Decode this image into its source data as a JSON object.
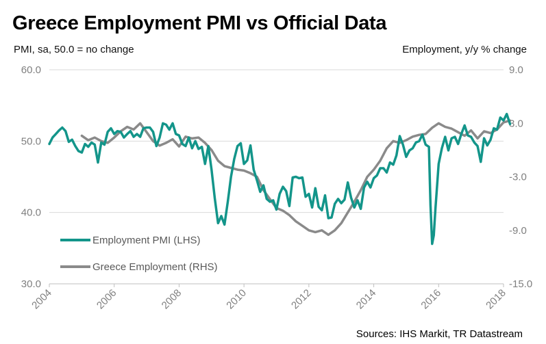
{
  "title": "Greece Employment PMI vs Official Data",
  "subtitle_left": "PMI, sa, 50.0 = no change",
  "subtitle_right": "Employment, y/y % change",
  "source": "Sources: IHS Markit, TR Datastream",
  "colors": {
    "pmi": "#13958a",
    "employment": "#8a8a8a",
    "grid": "#d9d9d9",
    "axis": "#7f7f7f"
  },
  "chart_data": {
    "type": "line",
    "title": "Greece Employment PMI vs Official Data",
    "grid": true,
    "legend_position": "bottom-left",
    "x_ticks": [
      "2004",
      "2006",
      "2008",
      "2010",
      "2012",
      "2014",
      "2016",
      "2018"
    ],
    "x_range": [
      2004.0,
      2018.0
    ],
    "y_left": {
      "label": "PMI, sa, 50.0 = no change",
      "range": [
        30,
        60
      ],
      "ticks": [
        "30.0",
        "40.0",
        "50.0",
        "60.0"
      ]
    },
    "y_right": {
      "label": "Employment, y/y % change",
      "range": [
        -15,
        9
      ],
      "ticks": [
        "-15.0",
        "-9.0",
        "-3.0",
        "3.0",
        "9.0"
      ]
    },
    "series": [
      {
        "name": "Employment PMI (LHS)",
        "axis": "left",
        "points": [
          [
            2004.0,
            49.6
          ],
          [
            2004.1,
            50.5
          ],
          [
            2004.2,
            51.0
          ],
          [
            2004.3,
            51.5
          ],
          [
            2004.4,
            51.9
          ],
          [
            2004.5,
            51.4
          ],
          [
            2004.6,
            49.9
          ],
          [
            2004.7,
            50.2
          ],
          [
            2004.8,
            49.3
          ],
          [
            2004.9,
            48.6
          ],
          [
            2005.0,
            48.4
          ],
          [
            2005.1,
            49.6
          ],
          [
            2005.2,
            49.2
          ],
          [
            2005.3,
            49.8
          ],
          [
            2005.4,
            49.5
          ],
          [
            2005.5,
            47.0
          ],
          [
            2005.6,
            49.8
          ],
          [
            2005.7,
            49.5
          ],
          [
            2005.8,
            51.3
          ],
          [
            2005.9,
            51.8
          ],
          [
            2006.0,
            51.0
          ],
          [
            2006.1,
            51.4
          ],
          [
            2006.2,
            51.3
          ],
          [
            2006.3,
            50.5
          ],
          [
            2006.4,
            51.0
          ],
          [
            2006.5,
            51.4
          ],
          [
            2006.6,
            50.6
          ],
          [
            2006.7,
            51.0
          ],
          [
            2006.8,
            50.6
          ],
          [
            2006.9,
            51.8
          ],
          [
            2007.0,
            51.9
          ],
          [
            2007.1,
            51.9
          ],
          [
            2007.2,
            51.3
          ],
          [
            2007.3,
            49.3
          ],
          [
            2007.4,
            50.5
          ],
          [
            2007.5,
            52.5
          ],
          [
            2007.6,
            52.3
          ],
          [
            2007.7,
            51.6
          ],
          [
            2007.8,
            52.5
          ],
          [
            2007.9,
            51.0
          ],
          [
            2008.0,
            50.8
          ],
          [
            2008.1,
            49.6
          ],
          [
            2008.2,
            49.3
          ],
          [
            2008.3,
            50.5
          ],
          [
            2008.4,
            49.0
          ],
          [
            2008.5,
            50.0
          ],
          [
            2008.6,
            48.9
          ],
          [
            2008.7,
            49.2
          ],
          [
            2008.8,
            46.8
          ],
          [
            2008.9,
            49.3
          ],
          [
            2009.0,
            46.0
          ],
          [
            2009.1,
            42.0
          ],
          [
            2009.2,
            38.5
          ],
          [
            2009.3,
            39.5
          ],
          [
            2009.4,
            38.3
          ],
          [
            2009.5,
            41.5
          ],
          [
            2009.6,
            45.0
          ],
          [
            2009.7,
            47.5
          ],
          [
            2009.8,
            49.3
          ],
          [
            2009.9,
            49.7
          ],
          [
            2010.0,
            46.8
          ],
          [
            2010.1,
            47.3
          ],
          [
            2010.2,
            49.4
          ],
          [
            2010.3,
            46.0
          ],
          [
            2010.4,
            44.5
          ],
          [
            2010.5,
            42.9
          ],
          [
            2010.6,
            43.8
          ],
          [
            2010.7,
            41.9
          ],
          [
            2010.8,
            41.5
          ],
          [
            2010.9,
            41.7
          ],
          [
            2011.0,
            40.4
          ],
          [
            2011.1,
            42.6
          ],
          [
            2011.2,
            43.6
          ],
          [
            2011.3,
            43.0
          ],
          [
            2011.4,
            40.9
          ],
          [
            2011.5,
            44.9
          ],
          [
            2011.6,
            45.0
          ],
          [
            2011.7,
            44.8
          ],
          [
            2011.8,
            44.9
          ],
          [
            2011.9,
            42.2
          ],
          [
            2012.0,
            42.6
          ],
          [
            2012.1,
            40.7
          ],
          [
            2012.2,
            43.4
          ],
          [
            2012.3,
            40.8
          ],
          [
            2012.4,
            40.3
          ],
          [
            2012.5,
            42.4
          ],
          [
            2012.6,
            39.2
          ],
          [
            2012.7,
            39.3
          ],
          [
            2012.8,
            41.2
          ],
          [
            2012.9,
            41.9
          ],
          [
            2013.0,
            41.3
          ],
          [
            2013.1,
            41.8
          ],
          [
            2013.2,
            44.2
          ],
          [
            2013.3,
            42.1
          ],
          [
            2013.4,
            40.7
          ],
          [
            2013.5,
            41.7
          ],
          [
            2013.6,
            40.5
          ],
          [
            2013.7,
            43.5
          ],
          [
            2013.8,
            44.3
          ],
          [
            2013.9,
            43.5
          ],
          [
            2014.0,
            44.8
          ],
          [
            2014.1,
            45.2
          ],
          [
            2014.2,
            46.2
          ],
          [
            2014.3,
            46.2
          ],
          [
            2014.4,
            45.6
          ],
          [
            2014.5,
            47.0
          ],
          [
            2014.6,
            46.7
          ],
          [
            2014.7,
            48.0
          ],
          [
            2014.8,
            50.7
          ],
          [
            2014.9,
            49.5
          ],
          [
            2015.0,
            47.8
          ],
          [
            2015.1,
            48.7
          ],
          [
            2015.2,
            49.0
          ],
          [
            2015.3,
            49.8
          ],
          [
            2015.4,
            50.0
          ],
          [
            2015.5,
            50.9
          ],
          [
            2015.6,
            49.5
          ],
          [
            2015.7,
            49.2
          ],
          [
            2015.75,
            41.0
          ],
          [
            2015.8,
            35.6
          ],
          [
            2015.85,
            36.8
          ],
          [
            2015.9,
            40.5
          ],
          [
            2016.0,
            46.8
          ],
          [
            2016.1,
            49.0
          ],
          [
            2016.2,
            50.6
          ],
          [
            2016.3,
            48.7
          ],
          [
            2016.4,
            50.4
          ],
          [
            2016.5,
            50.6
          ],
          [
            2016.6,
            49.6
          ],
          [
            2016.7,
            51.0
          ],
          [
            2016.8,
            52.2
          ],
          [
            2016.9,
            50.8
          ],
          [
            2017.0,
            50.6
          ],
          [
            2017.1,
            49.8
          ],
          [
            2017.2,
            49.3
          ],
          [
            2017.3,
            47.1
          ],
          [
            2017.4,
            50.4
          ],
          [
            2017.5,
            49.4
          ],
          [
            2017.6,
            50.2
          ],
          [
            2017.7,
            51.8
          ],
          [
            2017.8,
            51.6
          ],
          [
            2017.9,
            53.3
          ],
          [
            2018.0,
            52.9
          ],
          [
            2018.1,
            53.8
          ],
          [
            2018.2,
            52.4
          ]
        ]
      },
      {
        "name": "Greece Employment (RHS)",
        "axis": "right",
        "points": [
          [
            2005.0,
            1.6
          ],
          [
            2005.2,
            1.1
          ],
          [
            2005.4,
            1.4
          ],
          [
            2005.6,
            1.0
          ],
          [
            2005.8,
            0.8
          ],
          [
            2006.0,
            1.4
          ],
          [
            2006.2,
            2.1
          ],
          [
            2006.4,
            2.6
          ],
          [
            2006.6,
            2.3
          ],
          [
            2006.8,
            3.0
          ],
          [
            2007.0,
            2.0
          ],
          [
            2007.2,
            1.0
          ],
          [
            2007.4,
            0.5
          ],
          [
            2007.6,
            0.8
          ],
          [
            2007.8,
            1.2
          ],
          [
            2008.0,
            0.4
          ],
          [
            2008.2,
            1.5
          ],
          [
            2008.4,
            1.3
          ],
          [
            2008.6,
            1.4
          ],
          [
            2008.8,
            0.8
          ],
          [
            2009.0,
            0.0
          ],
          [
            2009.2,
            -1.2
          ],
          [
            2009.4,
            -1.8
          ],
          [
            2009.6,
            -2.0
          ],
          [
            2009.8,
            -2.2
          ],
          [
            2010.0,
            -2.3
          ],
          [
            2010.2,
            -2.6
          ],
          [
            2010.4,
            -3.0
          ],
          [
            2010.6,
            -4.5
          ],
          [
            2010.8,
            -5.5
          ],
          [
            2011.0,
            -6.5
          ],
          [
            2011.2,
            -6.8
          ],
          [
            2011.4,
            -7.3
          ],
          [
            2011.6,
            -8.0
          ],
          [
            2011.8,
            -8.5
          ],
          [
            2012.0,
            -9.0
          ],
          [
            2012.2,
            -9.2
          ],
          [
            2012.4,
            -9.0
          ],
          [
            2012.6,
            -9.5
          ],
          [
            2012.8,
            -9.0
          ],
          [
            2013.0,
            -8.2
          ],
          [
            2013.2,
            -7.0
          ],
          [
            2013.4,
            -5.8
          ],
          [
            2013.6,
            -4.5
          ],
          [
            2013.8,
            -3.0
          ],
          [
            2014.0,
            -2.2
          ],
          [
            2014.2,
            -1.2
          ],
          [
            2014.4,
            0.2
          ],
          [
            2014.6,
            1.0
          ],
          [
            2014.8,
            0.8
          ],
          [
            2015.0,
            1.1
          ],
          [
            2015.2,
            1.5
          ],
          [
            2015.4,
            1.7
          ],
          [
            2015.6,
            1.8
          ],
          [
            2015.8,
            2.5
          ],
          [
            2016.0,
            3.0
          ],
          [
            2016.2,
            2.6
          ],
          [
            2016.4,
            2.4
          ],
          [
            2016.6,
            2.0
          ],
          [
            2016.8,
            1.6
          ],
          [
            2017.0,
            2.2
          ],
          [
            2017.2,
            1.3
          ],
          [
            2017.4,
            2.1
          ],
          [
            2017.6,
            1.9
          ],
          [
            2017.8,
            2.3
          ],
          [
            2018.0,
            3.1
          ],
          [
            2018.2,
            3.3
          ]
        ]
      }
    ]
  }
}
